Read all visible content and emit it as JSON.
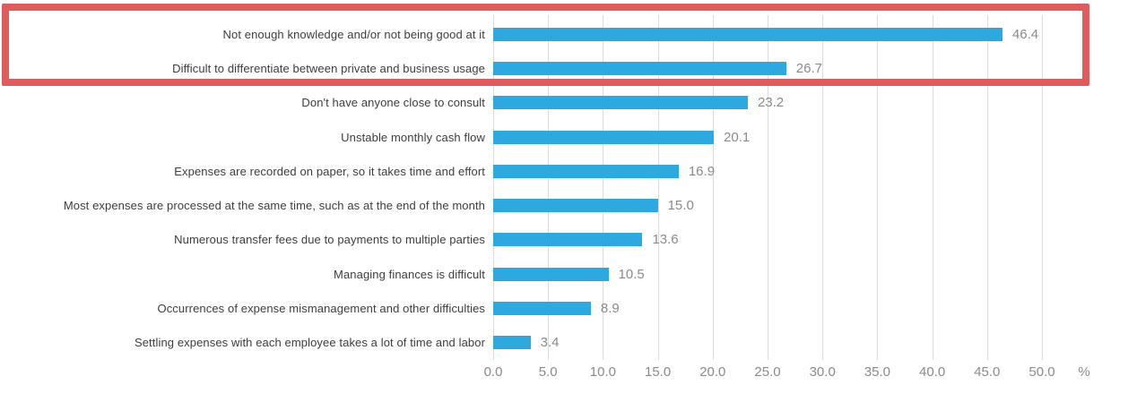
{
  "chart_data": {
    "type": "bar",
    "orientation": "horizontal",
    "title": "",
    "categories": [
      "Not enough knowledge and/or not being good at it",
      "Difficult to differentiate between private and business usage",
      "Don't have anyone close to consult",
      "Unstable monthly cash flow",
      "Expenses are recorded on paper, so it takes time and effort",
      "Most expenses are processed at the same time, such as at the end of the month",
      "Numerous transfer fees due to payments to multiple parties",
      "Managing finances is difficult",
      "Occurrences of expense mismanagement and other difficulties",
      "Settling expenses with each employee takes a lot of time and labor"
    ],
    "values": [
      46.4,
      26.7,
      23.2,
      20.1,
      16.9,
      15.0,
      13.6,
      10.5,
      8.9,
      3.4
    ],
    "value_labels": [
      "46.4",
      "26.7",
      "23.2",
      "20.1",
      "16.9",
      "15.0",
      "13.6",
      "10.5",
      "8.9",
      "3.4"
    ],
    "xlabel": "%",
    "x_ticks": [
      "0.0",
      "5.0",
      "10.0",
      "15.0",
      "20.0",
      "25.0",
      "30.0",
      "35.0",
      "40.0",
      "45.0",
      "50.0"
    ],
    "x_tick_values": [
      0,
      5,
      10,
      15,
      20,
      25,
      30,
      35,
      40,
      45,
      50
    ],
    "xlim": [
      0,
      50
    ],
    "grid": "vertical",
    "legend": "none",
    "bar_color": "#2ea9df",
    "gridline_color": "#dcdcdc",
    "category_text_color": "#3d3d3d",
    "value_text_color": "#8a8a8a",
    "annotation": {
      "type": "highlight-box",
      "color": "#e05c5c",
      "highlighted_rows": [
        0,
        1
      ]
    }
  }
}
